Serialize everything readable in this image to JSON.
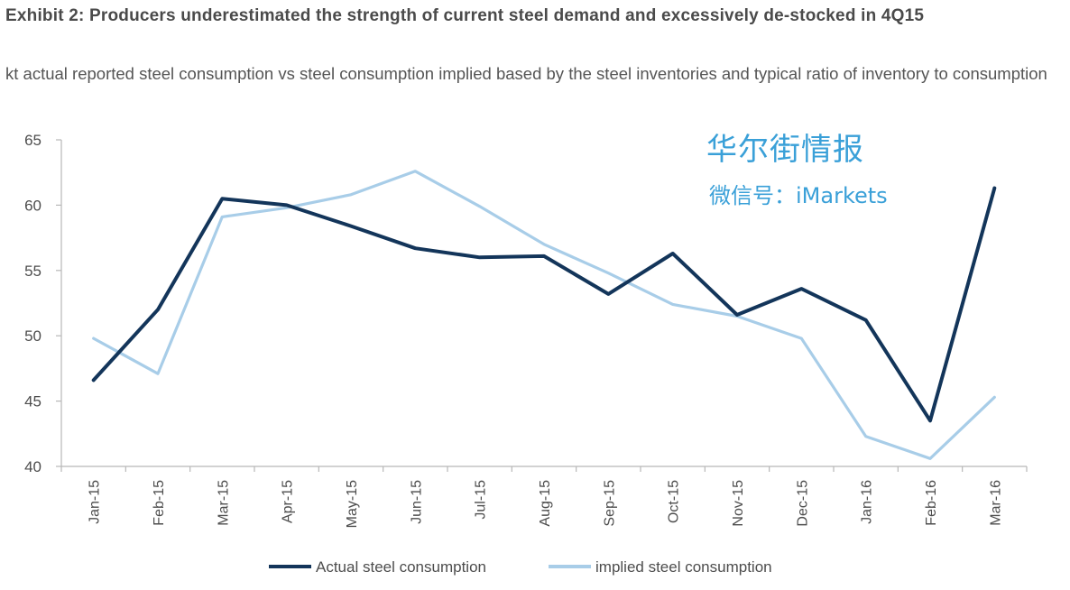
{
  "title": "Exhibit 2: Producers underestimated the strength of current steel demand and excessively de-stocked in 4Q15",
  "subtitle": "kt actual reported steel consumption vs steel consumption implied based by the steel inventories and typical ratio of inventory to consumption",
  "watermark": {
    "line1": "华尔街情报",
    "line2": "微信号：iMarkets"
  },
  "colors": {
    "actual": "#13355a",
    "implied": "#a8cde8",
    "axis": "#b8b8b8"
  },
  "chart_data": {
    "type": "line",
    "title": "Exhibit 2: Producers underestimated the strength of current steel demand and excessively de-stocked in 4Q15",
    "xlabel": "",
    "ylabel": "",
    "ylim": [
      40,
      65
    ],
    "yticks": [
      40,
      45,
      50,
      55,
      60,
      65
    ],
    "grid": false,
    "legend": "bottom-center",
    "categories": [
      "Jan-15",
      "Feb-15",
      "Mar-15",
      "Apr-15",
      "May-15",
      "Jun-15",
      "Jul-15",
      "Aug-15",
      "Sep-15",
      "Oct-15",
      "Nov-15",
      "Dec-15",
      "Jan-16",
      "Feb-16",
      "Mar-16"
    ],
    "series": [
      {
        "name": "Actual steel consumption",
        "key": "actual",
        "values": [
          46.6,
          52.0,
          60.5,
          60.0,
          58.4,
          56.7,
          56.0,
          56.1,
          53.2,
          56.3,
          51.6,
          53.6,
          51.2,
          43.5,
          61.3
        ]
      },
      {
        "name": "implied steel consumption",
        "key": "implied",
        "values": [
          49.8,
          47.1,
          59.1,
          59.8,
          60.8,
          62.6,
          59.9,
          57.0,
          54.8,
          52.4,
          51.5,
          49.8,
          42.3,
          40.6,
          45.3
        ]
      }
    ]
  }
}
